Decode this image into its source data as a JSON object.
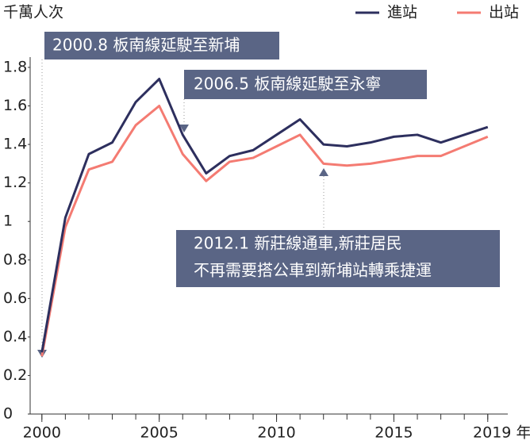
{
  "chart_data": {
    "type": "line",
    "y_label": "千萬人次",
    "x": [
      2000,
      2001,
      2002,
      2003,
      2004,
      2005,
      2006,
      2007,
      2008,
      2009,
      2010,
      2011,
      2012,
      2013,
      2014,
      2015,
      2016,
      2017,
      2018,
      2019
    ],
    "series": [
      {
        "name": "進站",
        "color": "#2d2f5e",
        "values": [
          0.32,
          1.02,
          1.35,
          1.41,
          1.62,
          1.74,
          1.45,
          1.25,
          1.34,
          1.37,
          1.45,
          1.53,
          1.4,
          1.39,
          1.41,
          1.44,
          1.45,
          1.41,
          1.45,
          1.49
        ]
      },
      {
        "name": "出站",
        "color": "#f47b72",
        "values": [
          0.3,
          0.97,
          1.27,
          1.31,
          1.5,
          1.6,
          1.35,
          1.21,
          1.31,
          1.33,
          1.39,
          1.45,
          1.3,
          1.29,
          1.3,
          1.32,
          1.34,
          1.34,
          1.39,
          1.44
        ]
      }
    ],
    "xlim": [
      1999.5,
      2020.8
    ],
    "xticks": [
      2000,
      2005,
      2010,
      2015,
      {
        "value": 2019,
        "label": "2019 年"
      }
    ],
    "ylim": [
      0,
      1.85
    ],
    "yticks": [
      0,
      0.2,
      0.4,
      0.6,
      0.8,
      1,
      1.2,
      1.4,
      1.6,
      1.8
    ],
    "legend": "top-right",
    "annotations": [
      {
        "lines": [
          "2000.8 板南線延駛至新埔"
        ]
      },
      {
        "lines": [
          "2006.5 板南線延駛至永寧"
        ]
      },
      {
        "lines": [
          "2012.1 新莊線通車,新莊居民",
          "不再需要搭公車到新埔站轉乘捷運"
        ]
      }
    ]
  }
}
